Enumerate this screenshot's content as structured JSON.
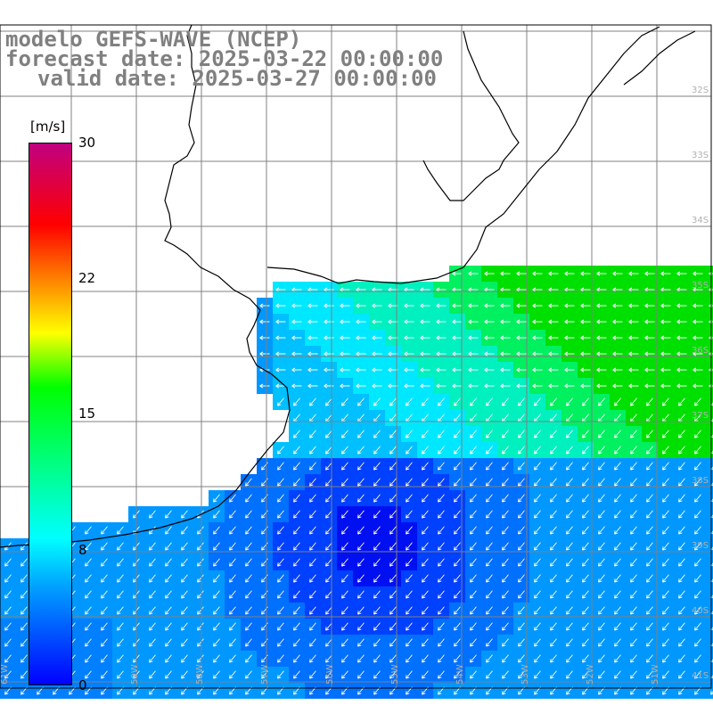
{
  "title": {
    "model": "modelo GEFS-WAVE (NCEP)",
    "forecast": "forecast date: 2025-03-22 00:00:00",
    "valid": "valid date: 2025-03-27 00:00:00"
  },
  "colorbar": {
    "unit": "[m/s]",
    "ticks": [
      "30",
      "22",
      "15",
      "8",
      "0"
    ],
    "colors": [
      "#0000ff",
      "#00a0ff",
      "#00ffff",
      "#00ff00",
      "#ffff00",
      "#ff8000",
      "#ff0000",
      "#c00080"
    ],
    "range": [
      0,
      30
    ]
  },
  "axis_labels": {
    "latitudes": [
      "32S",
      "33S",
      "34S",
      "35S",
      "36S",
      "37S",
      "38S",
      "39S",
      "40S",
      "41S"
    ],
    "longitudes": [
      "61W",
      "60W",
      "59W",
      "58W",
      "57W",
      "56W",
      "55W",
      "54W",
      "53W",
      "52W",
      "51W"
    ]
  },
  "legend_colors": {
    "land": "#ffffff",
    "grid": "#808080",
    "coast": "#000000",
    "arrow": "#ffffff"
  }
}
